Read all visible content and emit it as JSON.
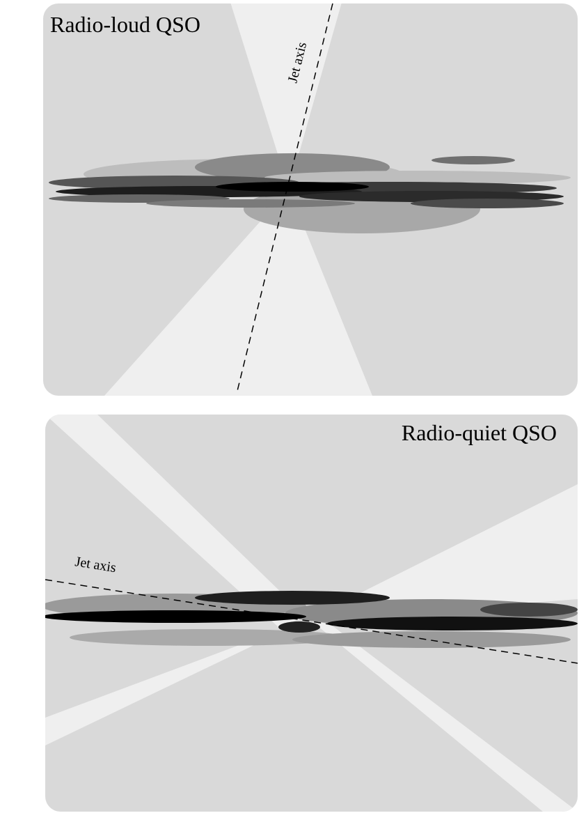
{
  "panels": [
    {
      "title": "Radio-loud QSO",
      "axis_label": "Jet axis"
    },
    {
      "title": "Radio-quiet QSO",
      "axis_label": "Jet axis"
    }
  ]
}
